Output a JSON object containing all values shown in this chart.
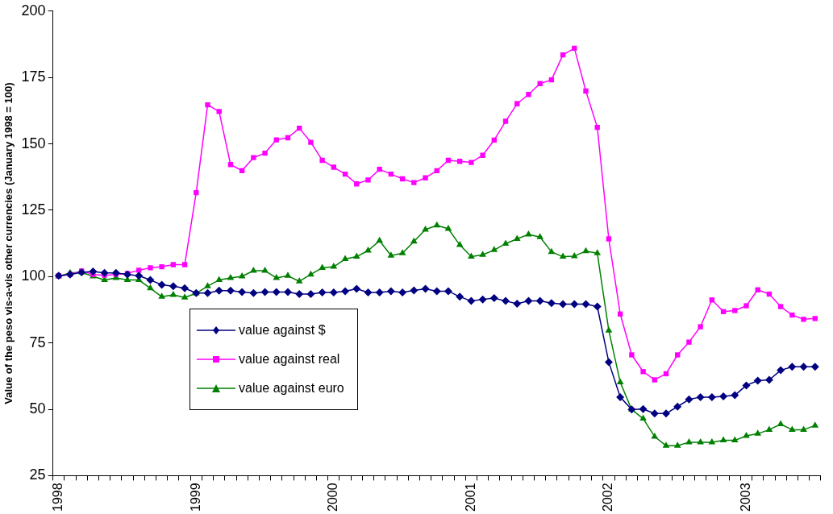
{
  "chart_data": {
    "type": "line",
    "ylabel": "Value of the peso vis-a-vis other currencies (January 1998 = 100)",
    "categories": [
      "1998",
      null,
      null,
      null,
      null,
      null,
      null,
      null,
      null,
      null,
      null,
      null,
      "1999",
      null,
      null,
      null,
      null,
      null,
      null,
      null,
      null,
      null,
      null,
      null,
      "2000",
      null,
      null,
      null,
      null,
      null,
      null,
      null,
      null,
      null,
      null,
      null,
      "2001",
      null,
      null,
      null,
      null,
      null,
      null,
      null,
      null,
      null,
      null,
      null,
      "2002",
      null,
      null,
      null,
      null,
      null,
      null,
      null,
      null,
      null,
      null,
      null,
      "2003",
      null,
      null,
      null,
      null,
      null,
      null
    ],
    "series": [
      {
        "name": "value against $",
        "color": "#000080",
        "marker": "diamond",
        "values": [
          100.3,
          100.8,
          101.6,
          101.9,
          101.4,
          101.4,
          100.8,
          100.3,
          98.7,
          96.9,
          96.4,
          95.6,
          93.8,
          93.8,
          94.7,
          94.7,
          94.2,
          93.8,
          94.2,
          94.2,
          94.2,
          93.4,
          93.4,
          94.0,
          94.0,
          94.5,
          95.4,
          94.0,
          94.0,
          94.5,
          94.0,
          94.8,
          95.4,
          94.5,
          94.5,
          92.4,
          90.8,
          91.4,
          91.9,
          90.8,
          89.8,
          90.8,
          90.8,
          90.0,
          89.6,
          89.6,
          89.6,
          88.7,
          67.8,
          54.6,
          49.9,
          50.1,
          48.4,
          48.4,
          51.0,
          53.7,
          54.6,
          54.6,
          54.9,
          55.3,
          59.0,
          60.8,
          61.1,
          64.7,
          66.0,
          66.0,
          66.0
        ]
      },
      {
        "name": "value against real",
        "color": "#ff00ff",
        "marker": "square",
        "values": [
          100.3,
          100.8,
          102.1,
          100.8,
          100.5,
          100.8,
          101.2,
          102.4,
          103.3,
          103.7,
          104.5,
          104.5,
          131.6,
          164.7,
          162.2,
          142.2,
          139.9,
          144.8,
          146.5,
          151.5,
          152.3,
          155.9,
          150.6,
          143.8,
          141.2,
          138.6,
          134.9,
          136.4,
          140.4,
          138.6,
          136.8,
          135.4,
          137.2,
          139.9,
          143.8,
          143.4,
          143.0,
          145.7,
          151.4,
          158.5,
          165.1,
          168.6,
          172.7,
          174.1,
          183.5,
          186.0,
          169.9,
          156.2,
          114.2,
          85.9,
          70.5,
          64.2,
          61.1,
          63.4,
          70.5,
          75.3,
          81.1,
          91.2,
          86.8,
          87.2,
          89.0,
          95.0,
          93.4,
          88.7,
          85.5,
          83.9,
          84.2
        ]
      },
      {
        "name": "value against euro",
        "color": "#008000",
        "marker": "triangle",
        "values": [
          100.1,
          101.4,
          101.6,
          100.1,
          98.7,
          99.5,
          98.7,
          98.7,
          95.6,
          92.4,
          93.1,
          92.1,
          93.7,
          96.4,
          98.7,
          99.5,
          100.1,
          102.2,
          102.2,
          99.5,
          100.3,
          98.2,
          100.8,
          103.3,
          103.7,
          106.6,
          107.5,
          109.8,
          113.5,
          107.9,
          108.8,
          113.2,
          117.7,
          119.3,
          118.0,
          111.9,
          107.5,
          108.2,
          110.0,
          112.4,
          114.2,
          115.9,
          114.9,
          109.3,
          107.5,
          107.7,
          109.6,
          108.8,
          79.7,
          60.2,
          49.9,
          46.5,
          39.7,
          36.3,
          36.3,
          37.6,
          37.6,
          37.6,
          38.3,
          38.3,
          40.0,
          40.8,
          42.3,
          44.4,
          42.3,
          42.3,
          43.9
        ]
      }
    ],
    "ylim": [
      25,
      200
    ],
    "yticks": [
      25,
      50,
      75,
      100,
      125,
      150,
      175,
      200
    ],
    "grid": false,
    "legend": "bottom left",
    "line_style": "solid"
  }
}
